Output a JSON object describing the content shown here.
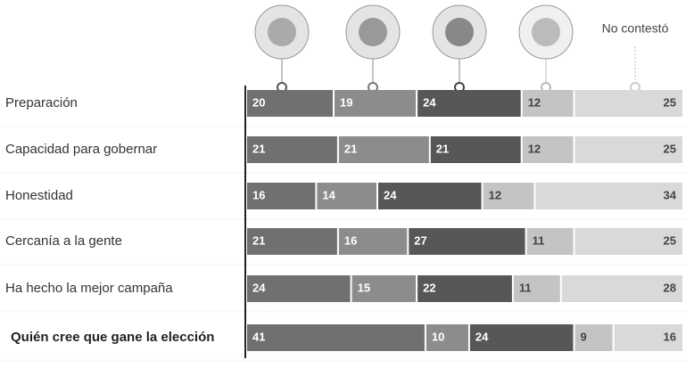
{
  "chart_data": {
    "type": "stacked-bar",
    "categories": [
      "Preparación",
      "Capacidad para gobernar",
      "Honestidad",
      "Cercanía a la gente",
      "Ha hecho la mejor campaña",
      "Quién cree que gane la elección"
    ],
    "series": [
      {
        "color": "#707070",
        "values": [
          20,
          21,
          16,
          21,
          24,
          41
        ]
      },
      {
        "color": "#8c8c8c",
        "values": [
          19,
          21,
          14,
          16,
          15,
          10
        ]
      },
      {
        "color": "#575757",
        "values": [
          24,
          21,
          24,
          27,
          22,
          24
        ]
      },
      {
        "color": "#c4c4c4",
        "values": [
          12,
          12,
          12,
          11,
          11,
          9
        ]
      },
      {
        "name": "No contestó",
        "color": "#d9d9d9",
        "values": [
          25,
          25,
          34,
          25,
          28,
          16
        ]
      }
    ],
    "xlim": [
      0,
      100
    ]
  }
}
